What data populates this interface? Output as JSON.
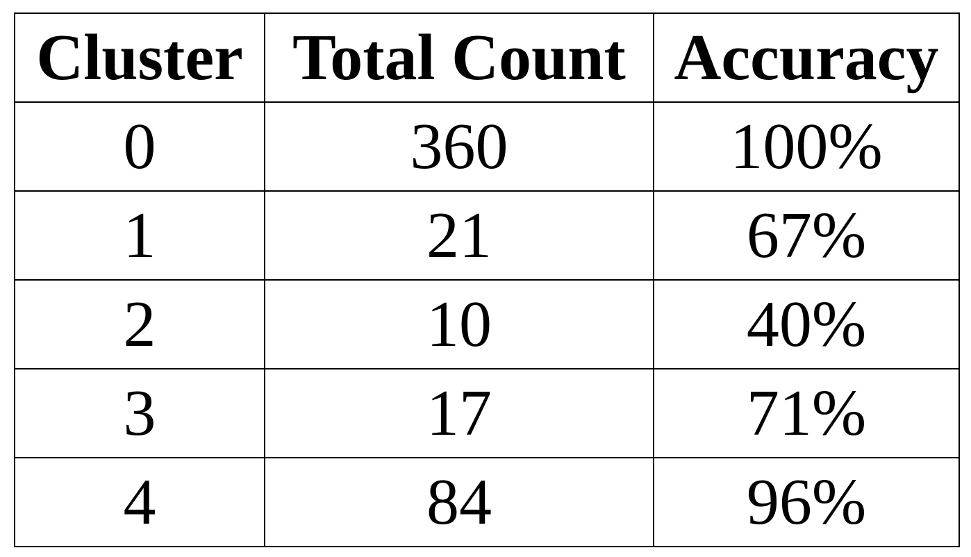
{
  "chart_data": {
    "type": "table",
    "columns": [
      "Cluster",
      "Total Count",
      "Accuracy"
    ],
    "rows": [
      [
        "0",
        "360",
        "100%"
      ],
      [
        "1",
        "21",
        "67%"
      ],
      [
        "2",
        "10",
        "40%"
      ],
      [
        "3",
        "17",
        "71%"
      ],
      [
        "4",
        "84",
        "96%"
      ]
    ]
  }
}
